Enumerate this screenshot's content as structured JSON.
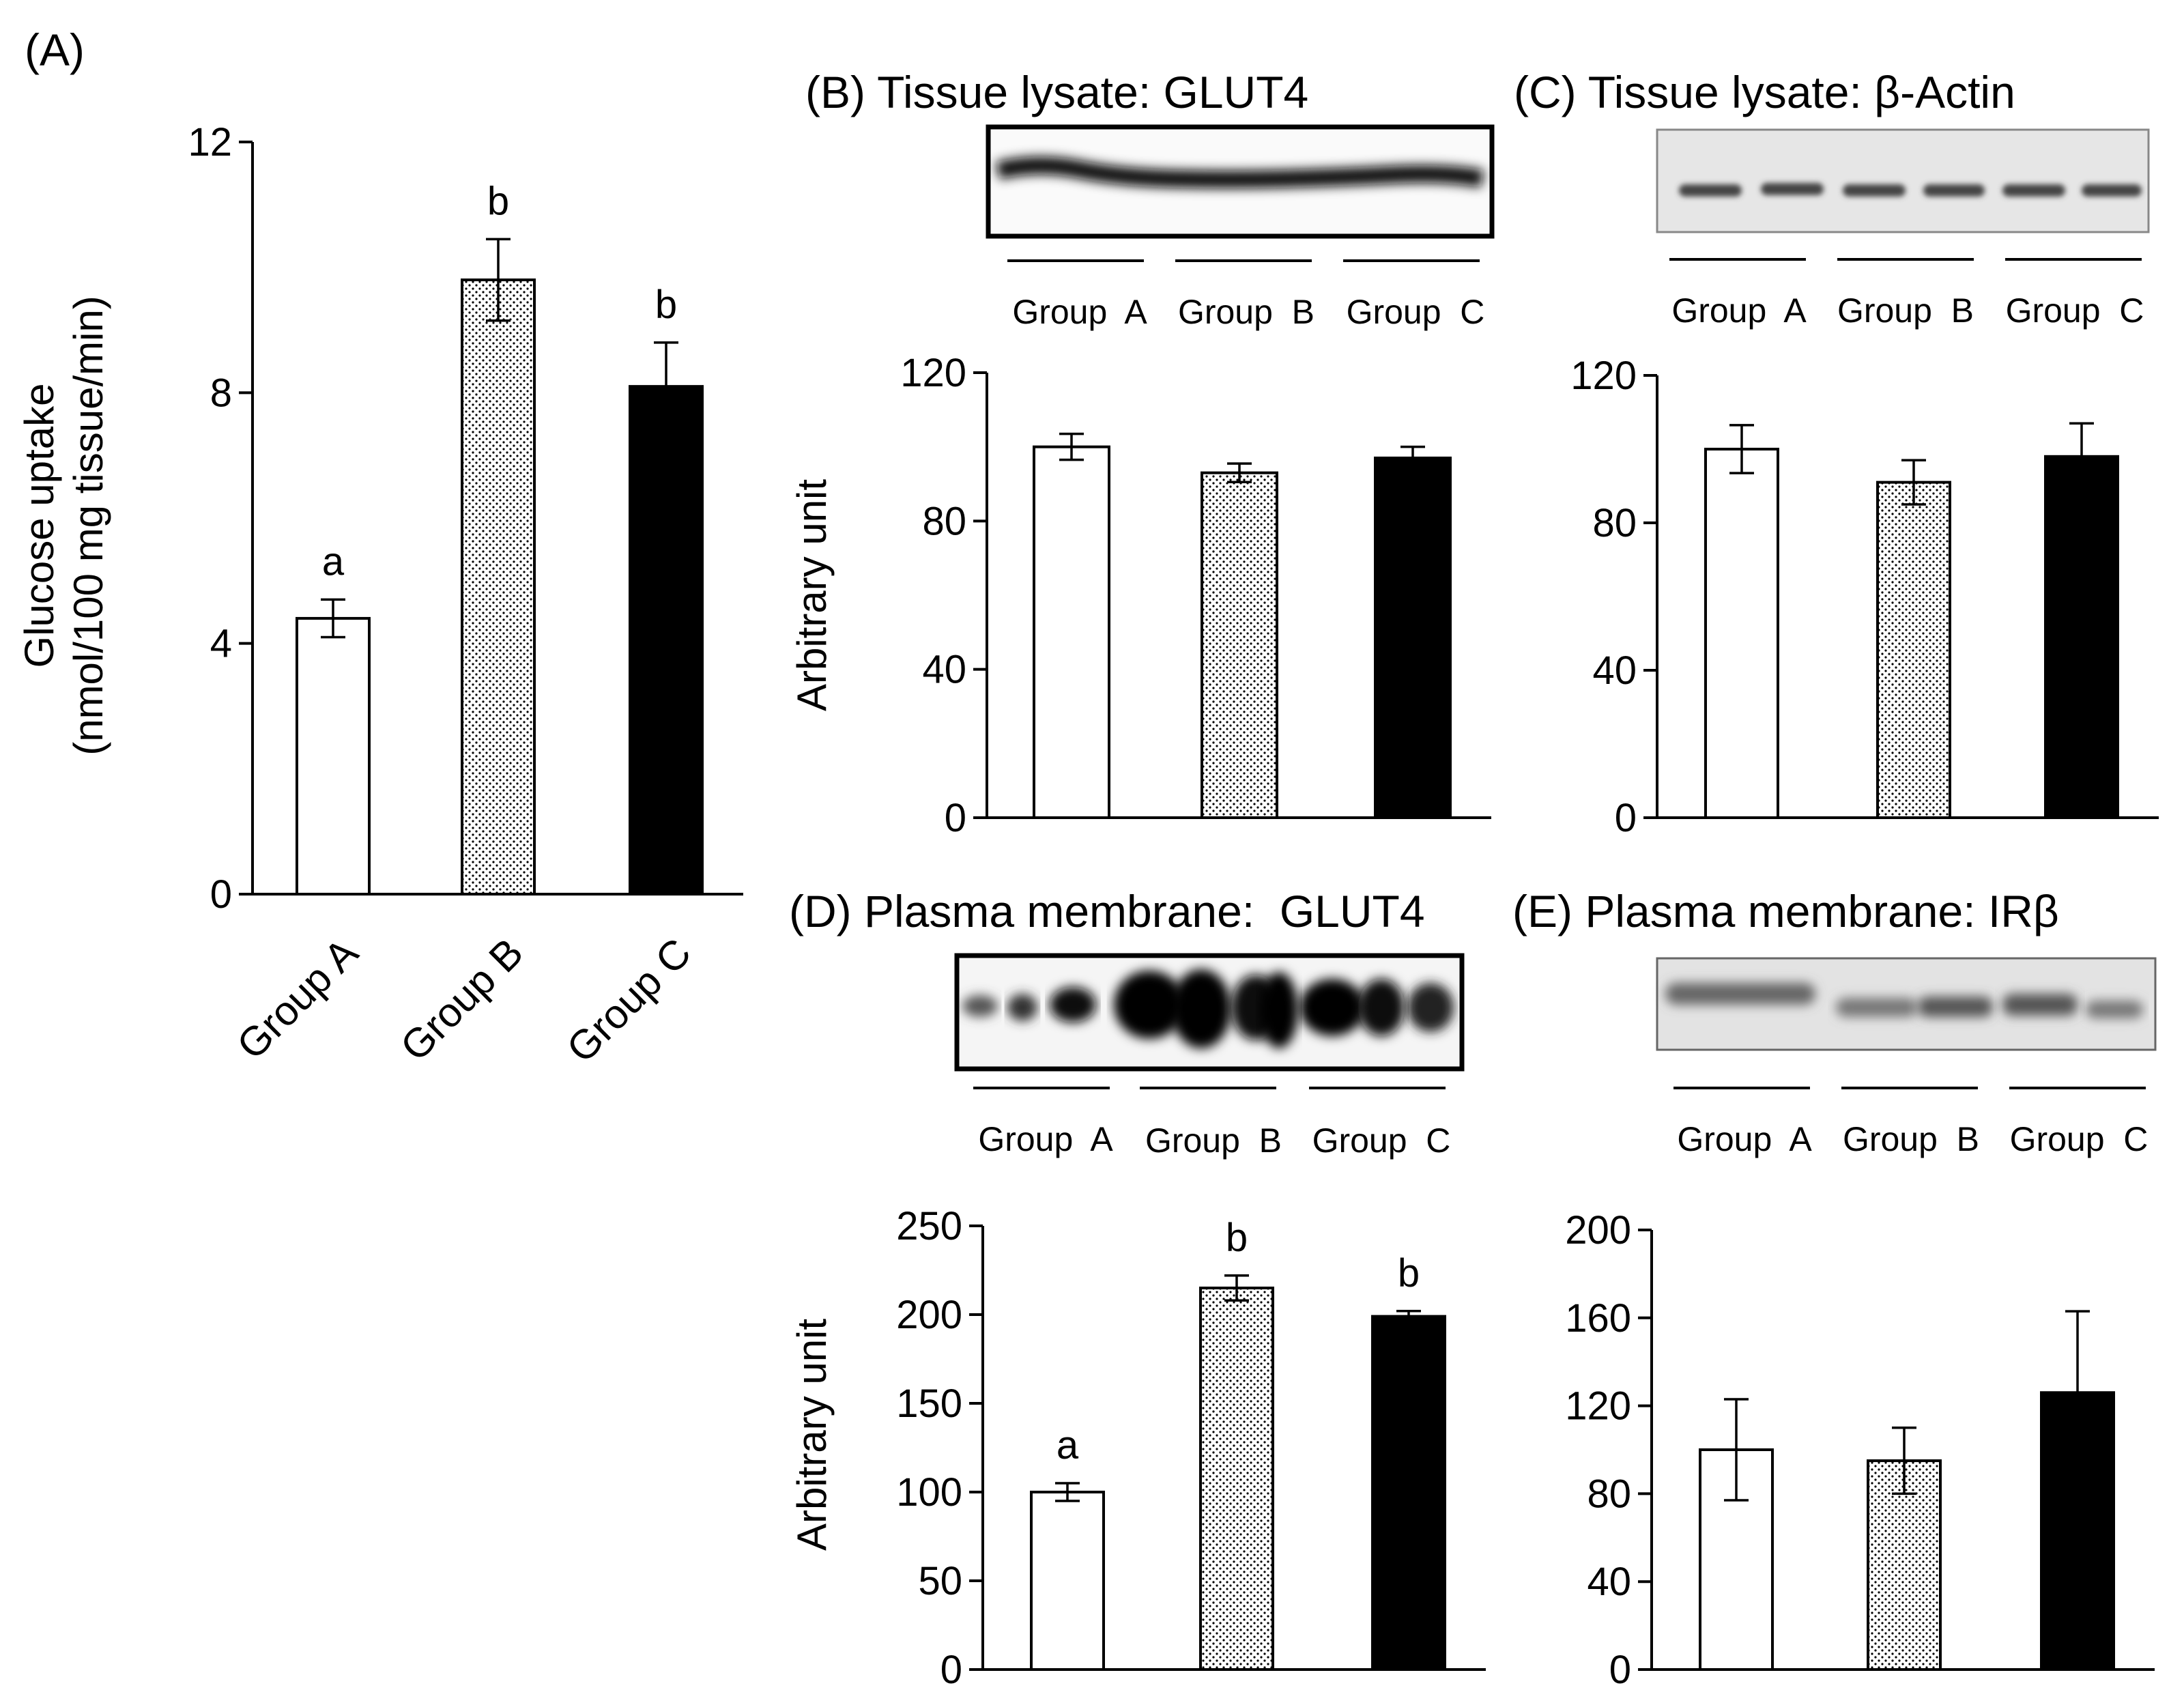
{
  "colors": {
    "ink": "#000000",
    "paper": "#ffffff",
    "blot_dark": "#0a0a0a",
    "blot_light": "#e8e8e8"
  },
  "chart_data": [
    {
      "id": "A",
      "type": "bar",
      "panel_label": "(A)",
      "title": "",
      "ylabel_lines": [
        "Glucose uptake",
        "(nmol/100 mg tissue/min)"
      ],
      "categories": [
        "Group A",
        "Group B",
        "Group C"
      ],
      "values": [
        4.4,
        9.8,
        8.1
      ],
      "errors": [
        0.3,
        0.65,
        0.7
      ],
      "fills": [
        "white",
        "dotted",
        "black"
      ],
      "sig": [
        "a",
        "b",
        "b"
      ],
      "ylim": [
        0,
        12
      ],
      "yticks": [
        0,
        4,
        8,
        12
      ],
      "ytick_labels": [
        "0",
        "4",
        "8",
        "12"
      ]
    },
    {
      "id": "B",
      "type": "bar",
      "panel_label": "(B) Tissue lysate: GLUT4",
      "ylabel": "Arbitrary unit",
      "lane_labels": [
        "Group  A",
        "Group  B",
        "Group  C"
      ],
      "categories": [
        "Group A",
        "Group B",
        "Group C"
      ],
      "values": [
        100,
        93,
        97
      ],
      "errors": [
        3.5,
        2.5,
        3
      ],
      "fills": [
        "white",
        "dotted",
        "black"
      ],
      "sig": [],
      "ylim": [
        0,
        120
      ],
      "yticks": [
        0,
        40,
        80,
        120
      ],
      "ytick_labels": [
        "0",
        "40",
        "80",
        "120"
      ]
    },
    {
      "id": "C",
      "type": "bar",
      "panel_label": "(C) Tissue lysate: β-Actin",
      "ylabel": "",
      "lane_labels": [
        "Group  A",
        "Group  B",
        "Group  C"
      ],
      "categories": [
        "Group A",
        "Group B",
        "Group C"
      ],
      "values": [
        100,
        91,
        98
      ],
      "errors": [
        6.5,
        6,
        9
      ],
      "fills": [
        "white",
        "dotted",
        "black"
      ],
      "sig": [],
      "ylim": [
        0,
        120
      ],
      "yticks": [
        0,
        40,
        80,
        120
      ],
      "ytick_labels": [
        "0",
        "40",
        "80",
        "120"
      ]
    },
    {
      "id": "D",
      "type": "bar",
      "panel_label": "(D) Plasma membrane:  GLUT4",
      "ylabel": "Arbitrary unit",
      "lane_labels": [
        "Group  A",
        "Group  B",
        "Group  C"
      ],
      "categories": [
        "Group A",
        "Group B",
        "Group C"
      ],
      "values": [
        100,
        215,
        199
      ],
      "errors": [
        5,
        7,
        3
      ],
      "fills": [
        "white",
        "dotted",
        "black"
      ],
      "sig": [
        "a",
        "b",
        "b"
      ],
      "ylim": [
        0,
        250
      ],
      "yticks": [
        0,
        50,
        100,
        150,
        200,
        250
      ],
      "ytick_labels": [
        "0",
        "50",
        "100",
        "150",
        "200",
        "250"
      ]
    },
    {
      "id": "E",
      "type": "bar",
      "panel_label": "(E) Plasma membrane: IRβ",
      "ylabel": "",
      "lane_labels": [
        "Group  A",
        "Group  B",
        "Group  C"
      ],
      "categories": [
        "Group A",
        "Group B",
        "Group C"
      ],
      "values": [
        100,
        95,
        126
      ],
      "errors": [
        23,
        15,
        37
      ],
      "fills": [
        "white",
        "dotted",
        "black"
      ],
      "sig": [],
      "ylim": [
        0,
        200
      ],
      "yticks": [
        0,
        40,
        80,
        120,
        160,
        200
      ],
      "ytick_labels": [
        "0",
        "40",
        "80",
        "120",
        "160",
        "200"
      ]
    }
  ]
}
